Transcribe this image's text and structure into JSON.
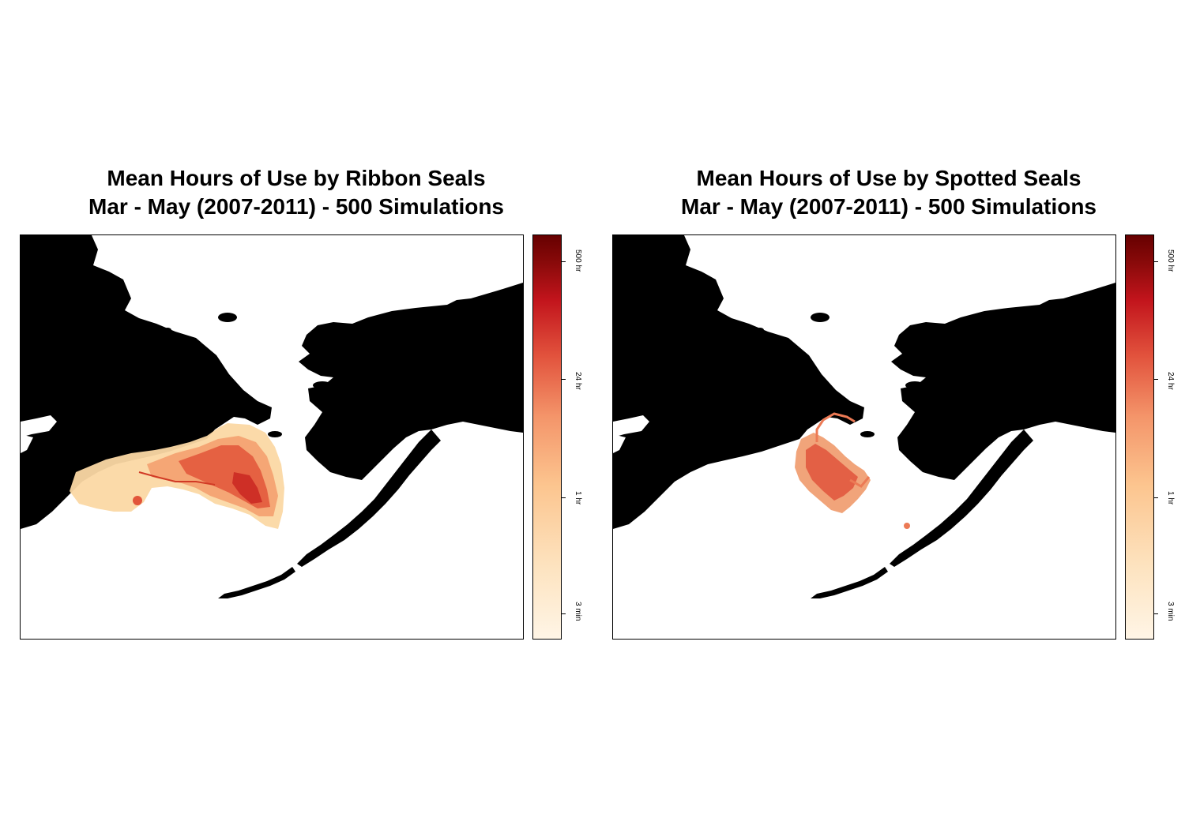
{
  "panels": [
    {
      "id": "left",
      "title_line1": "Mean Hours of Use by Ribbon Seals",
      "title_line2": "Mar - May (2007-2011) - 500 Simulations",
      "colorbar": {
        "ticks": [
          "500 hr",
          "24 hr",
          "1 hr",
          "3 min"
        ],
        "colors": [
          "#fff5e6",
          "#fde3bf",
          "#fcc58f",
          "#f4956a",
          "#e2533d",
          "#c2141c",
          "#660000"
        ]
      }
    },
    {
      "id": "right",
      "title_line1": "Mean Hours of Use by Spotted Seals",
      "title_line2": "Mar - May (2007-2011) - 500 Simulations",
      "colorbar": {
        "ticks": [
          "500 hr",
          "24 hr",
          "1 hr",
          "3 min"
        ],
        "colors": [
          "#fff5e6",
          "#fde3bf",
          "#fcc58f",
          "#f4956a",
          "#e2533d",
          "#c2141c",
          "#660000"
        ]
      }
    }
  ],
  "style": {
    "land_color": "#000000",
    "water_color": "#ffffff"
  }
}
